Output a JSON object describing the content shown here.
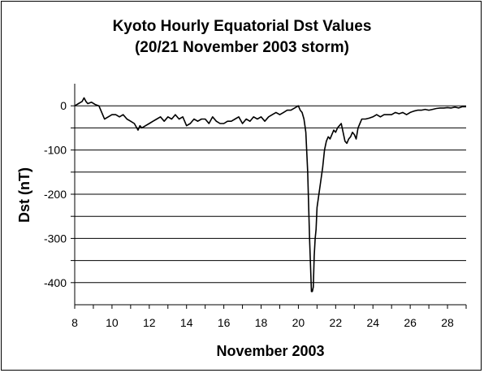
{
  "chart_data": {
    "type": "line",
    "title": "Kyoto Hourly Equatorial Dst Values",
    "subtitle": "(20/21 November 2003 storm)",
    "xlabel": "November 2003",
    "ylabel": "Dst (nT)",
    "xlim": [
      8,
      29
    ],
    "ylim": [
      -450,
      50
    ],
    "xticks": [
      8,
      10,
      12,
      14,
      16,
      18,
      20,
      22,
      24,
      26,
      28
    ],
    "yticks": [
      0,
      -100,
      -200,
      -300,
      -400
    ],
    "ygrid_major": [
      0,
      -50,
      -100,
      -150,
      -200,
      -250,
      -300,
      -350,
      -400
    ],
    "grid": true,
    "line_color": "#000000",
    "series": [
      {
        "x": [
          8.0,
          8.2,
          8.4,
          8.5,
          8.6,
          8.7,
          8.9,
          9.1,
          9.3,
          9.45,
          9.6,
          9.8,
          10.0,
          10.2,
          10.4,
          10.6,
          10.8,
          11.0,
          11.2,
          11.4,
          11.5,
          11.6,
          11.8,
          12.0,
          12.2,
          12.4,
          12.6,
          12.8,
          13.0,
          13.2,
          13.4,
          13.6,
          13.8,
          14.0,
          14.2,
          14.4,
          14.6,
          14.8,
          15.0,
          15.2,
          15.4,
          15.6,
          15.8,
          16.0,
          16.2,
          16.4,
          16.6,
          16.8,
          17.0,
          17.2,
          17.4,
          17.6,
          17.8,
          18.0,
          18.2,
          18.4,
          18.6,
          18.8,
          19.0,
          19.2,
          19.4,
          19.6,
          19.8,
          20.0,
          20.1,
          20.2,
          20.3,
          20.35,
          20.4,
          20.5,
          20.6,
          20.7,
          20.75,
          20.8,
          20.85,
          20.9,
          20.95,
          21.0,
          21.1,
          21.2,
          21.3,
          21.4,
          21.5,
          21.6,
          21.7,
          21.8,
          21.9,
          22.0,
          22.1,
          22.2,
          22.3,
          22.4,
          22.5,
          22.6,
          22.7,
          22.8,
          22.9,
          23.0,
          23.1,
          23.2,
          23.3,
          23.4,
          23.5,
          23.6,
          23.8,
          24.0,
          24.2,
          24.4,
          24.6,
          24.8,
          25.0,
          25.2,
          25.4,
          25.6,
          25.8,
          26.0,
          26.2,
          26.4,
          26.6,
          26.8,
          27.0,
          27.2,
          27.4,
          27.6,
          27.8,
          28.0,
          28.2,
          28.4,
          28.6,
          28.8,
          29.0
        ],
        "y": [
          0,
          5,
          10,
          18,
          10,
          5,
          8,
          3,
          0,
          -15,
          -30,
          -25,
          -20,
          -20,
          -25,
          -20,
          -30,
          -35,
          -40,
          -55,
          -45,
          -50,
          -45,
          -40,
          -35,
          -30,
          -25,
          -35,
          -25,
          -30,
          -20,
          -30,
          -25,
          -45,
          -40,
          -30,
          -35,
          -30,
          -30,
          -40,
          -25,
          -35,
          -40,
          -40,
          -35,
          -35,
          -30,
          -25,
          -40,
          -30,
          -35,
          -25,
          -30,
          -25,
          -35,
          -25,
          -20,
          -15,
          -20,
          -15,
          -10,
          -10,
          -5,
          0,
          -10,
          -15,
          -30,
          -45,
          -60,
          -150,
          -300,
          -420,
          -420,
          -410,
          -340,
          -300,
          -280,
          -230,
          -200,
          -170,
          -140,
          -100,
          -80,
          -70,
          -75,
          -65,
          -55,
          -60,
          -50,
          -45,
          -40,
          -60,
          -80,
          -85,
          -75,
          -70,
          -60,
          -65,
          -75,
          -50,
          -40,
          -30,
          -30,
          -30,
          -28,
          -25,
          -20,
          -25,
          -20,
          -20,
          -20,
          -15,
          -18,
          -15,
          -20,
          -15,
          -12,
          -10,
          -10,
          -8,
          -10,
          -8,
          -6,
          -5,
          -5,
          -4,
          -5,
          -3,
          -5,
          -2,
          -2
        ]
      }
    ]
  }
}
